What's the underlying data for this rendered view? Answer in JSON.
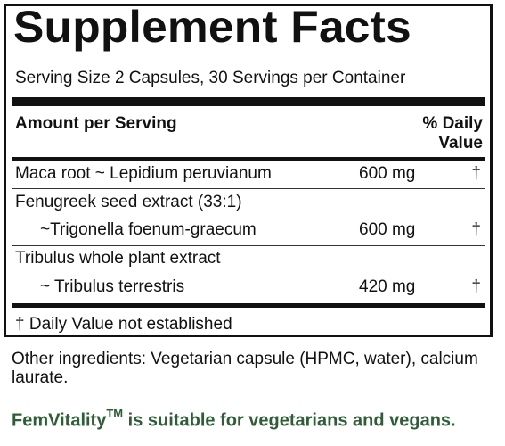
{
  "panel": {
    "title": "Supplement Facts",
    "serving_size": "Serving Size 2 Capsules, 30 Servings per Container",
    "header": {
      "amount_per_serving": "Amount per Serving",
      "daily_value_line1": "% Daily",
      "daily_value_line2": "Value"
    },
    "rows": [
      {
        "name": "Maca root ~ Lepidium peruvianum",
        "amount": "600  mg",
        "dv": "†"
      },
      {
        "name_line1": "Fenugreek seed extract (33:1)",
        "name_line2": "~Trigonella foenum-graecum",
        "amount": "600  mg",
        "dv": "†"
      },
      {
        "name_line1": "Tribulus whole plant extract",
        "name_line2": "~ Tribulus terrestris",
        "amount": "420  mg",
        "dv": "†"
      }
    ],
    "footnote": "† Daily Value not established"
  },
  "other_ingredients": "Other ingredients: Vegetarian capsule (HPMC, water), calcium laurate.",
  "vegetarian_note": {
    "brand": "FemVitality",
    "trademark": "TM",
    "text": " is suitable for vegetarians and vegans."
  },
  "colors": {
    "text": "#111111",
    "brand_green": "#2e5e36"
  }
}
